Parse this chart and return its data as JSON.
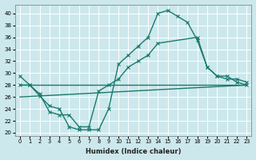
{
  "background_color": "#cce8ec",
  "grid_color": "#ffffff",
  "line_color": "#1a7a6e",
  "xlim": [
    -0.5,
    23.5
  ],
  "ylim": [
    19.5,
    41.5
  ],
  "yticks": [
    20,
    22,
    24,
    26,
    28,
    30,
    32,
    34,
    36,
    38,
    40
  ],
  "xticks": [
    0,
    1,
    2,
    3,
    4,
    5,
    6,
    7,
    8,
    9,
    10,
    11,
    12,
    13,
    14,
    15,
    16,
    17,
    18,
    19,
    20,
    21,
    22,
    23
  ],
  "xlabel": "Humidex (Indice chaleur)",
  "curve1_x": [
    0,
    1,
    2,
    3,
    4,
    5,
    6,
    7,
    8,
    9,
    10,
    11,
    12,
    13,
    14,
    15,
    16,
    17,
    18,
    19,
    20,
    21,
    22,
    23
  ],
  "curve1_y": [
    29.5,
    28.0,
    26.2,
    24.5,
    24.0,
    21.0,
    20.5,
    20.5,
    20.5,
    24.0,
    31.5,
    33.0,
    34.5,
    36.0,
    40.0,
    40.5,
    39.5,
    38.5,
    35.5,
    31.0,
    29.5,
    29.0,
    29.0,
    28.5
  ],
  "curve2_x": [
    0,
    1,
    2,
    3,
    4,
    5,
    6,
    7,
    8,
    9,
    10,
    11,
    12,
    13,
    14,
    18,
    19,
    20,
    21,
    22,
    23
  ],
  "curve2_y": [
    28.0,
    28.0,
    26.5,
    23.5,
    23.0,
    23.0,
    21.0,
    21.0,
    27.0,
    28.0,
    29.0,
    31.0,
    32.0,
    33.0,
    35.0,
    36.0,
    31.0,
    29.5,
    29.5,
    28.5,
    28.0
  ],
  "curve3_x": [
    0,
    23
  ],
  "curve3_y": [
    28.0,
    28.0
  ],
  "curve4_x": [
    0,
    23
  ],
  "curve4_y": [
    26.0,
    28.0
  ]
}
